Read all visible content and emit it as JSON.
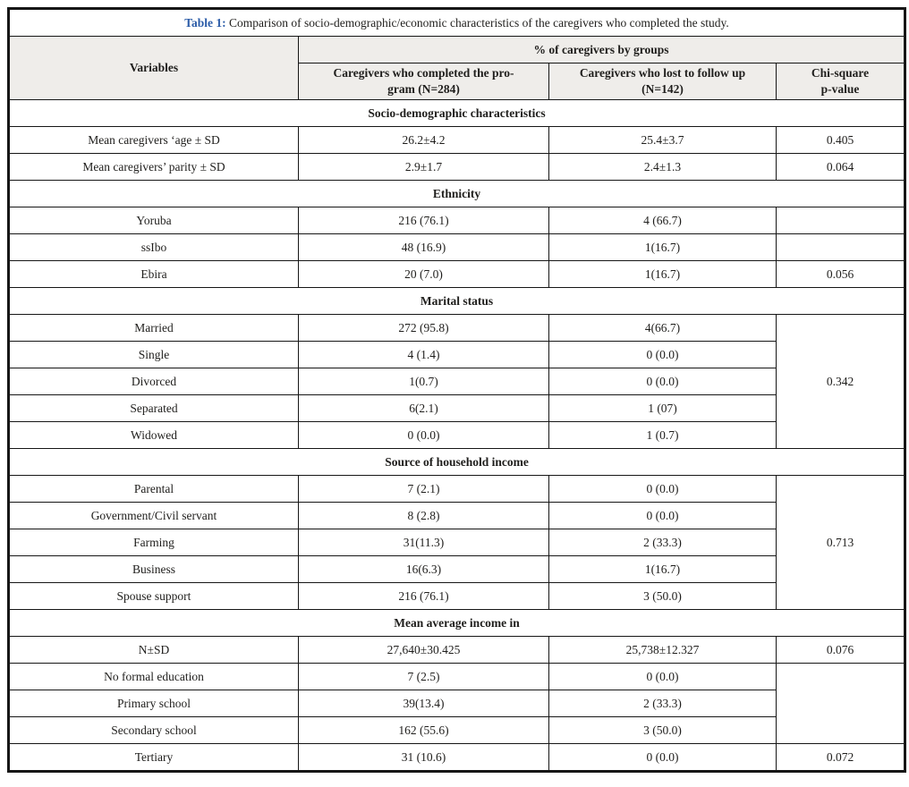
{
  "title": {
    "label": "Table 1:",
    "text": " Comparison of socio-demographic/economic characteristics of the caregivers who completed the study."
  },
  "colors": {
    "caption_accent": "#2b5ca8",
    "caption_text": "#454545",
    "header_bg": "#efedea",
    "border": "#161616",
    "body_text": "#1f1e1c"
  },
  "header": {
    "variables": "Variables",
    "group_header": "% of caregivers by groups",
    "col_completed": "Caregivers who completed the pro-\ngram (N=284)",
    "col_lost": "Caregivers who lost to follow up\n(N=142)",
    "col_chi": "Chi-square\np-value"
  },
  "rows": [
    {
      "type": "section",
      "label": "Socio-demographic characteristics"
    },
    {
      "type": "data",
      "variable": "Mean caregivers ‘age ± SD",
      "completed": "26.2±4.2",
      "lost": "25.4±3.7",
      "p": {
        "text": "0.405",
        "rowspan": 1
      }
    },
    {
      "type": "data",
      "variable": "Mean caregivers’ parity ± SD",
      "completed": "2.9±1.7",
      "lost": "2.4±1.3",
      "p": {
        "text": "0.064",
        "rowspan": 1
      }
    },
    {
      "type": "section",
      "label": "Ethnicity"
    },
    {
      "type": "data",
      "variable": "Yoruba",
      "completed": "216 (76.1)",
      "lost": "4 (66.7)",
      "p": {
        "text": "",
        "rowspan": 1
      }
    },
    {
      "type": "data",
      "variable": "ssIbo",
      "completed": "48 (16.9)",
      "lost": "1(16.7)",
      "p": {
        "text": "",
        "rowspan": 1
      }
    },
    {
      "type": "data",
      "variable": "Ebira",
      "completed": "20 (7.0)",
      "lost": "1(16.7)",
      "p": {
        "text": "0.056",
        "rowspan": 1
      }
    },
    {
      "type": "section",
      "label": "Marital status"
    },
    {
      "type": "data",
      "variable": "Married",
      "completed": "272 (95.8)",
      "lost": "4(66.7)",
      "p": {
        "text": "0.342",
        "rowspan": 5
      }
    },
    {
      "type": "data",
      "variable": "Single",
      "completed": "4 (1.4)",
      "lost": "0 (0.0)",
      "p": null
    },
    {
      "type": "data",
      "variable": "Divorced",
      "completed": "1(0.7)",
      "lost": "0 (0.0)",
      "p": null
    },
    {
      "type": "data",
      "variable": "Separated",
      "completed": "6(2.1)",
      "lost": "1 (07)",
      "p": null
    },
    {
      "type": "data",
      "variable": "Widowed",
      "completed": "0 (0.0)",
      "lost": "1 (0.7)",
      "p": null
    },
    {
      "type": "section",
      "label": "Source of household income"
    },
    {
      "type": "data",
      "variable": "Parental",
      "completed": "7 (2.1)",
      "lost": "0 (0.0)",
      "p": {
        "text": "0.713",
        "rowspan": 5
      }
    },
    {
      "type": "data",
      "variable": "Government/Civil servant",
      "completed": "8 (2.8)",
      "lost": "0 (0.0)",
      "p": null
    },
    {
      "type": "data",
      "variable": "Farming",
      "completed": "31(11.3)",
      "lost": "2 (33.3)",
      "p": null
    },
    {
      "type": "data",
      "variable": "Business",
      "completed": "16(6.3)",
      "lost": "1(16.7)",
      "p": null
    },
    {
      "type": "data",
      "variable": "Spouse support",
      "completed": "216 (76.1)",
      "lost": "3 (50.0)",
      "p": null
    },
    {
      "type": "section",
      "label": "Mean average income in"
    },
    {
      "type": "data",
      "variable": "N±SD",
      "completed": "27,640±30.425",
      "lost": "25,738±12.327",
      "p": {
        "text": "0.076",
        "rowspan": 1
      }
    },
    {
      "type": "data",
      "variable": "No formal education",
      "completed": "7 (2.5)",
      "lost": "0 (0.0)",
      "p": {
        "text": "",
        "rowspan": 3
      }
    },
    {
      "type": "data",
      "variable": "Primary school",
      "completed": "39(13.4)",
      "lost": "2 (33.3)",
      "p": null
    },
    {
      "type": "data",
      "variable": "Secondary school",
      "completed": "162 (55.6)",
      "lost": "3 (50.0)",
      "p": null
    },
    {
      "type": "data",
      "variable": "Tertiary",
      "completed": "31 (10.6)",
      "lost": "0 (0.0)",
      "p": {
        "text": "0.072",
        "rowspan": 1
      }
    }
  ]
}
